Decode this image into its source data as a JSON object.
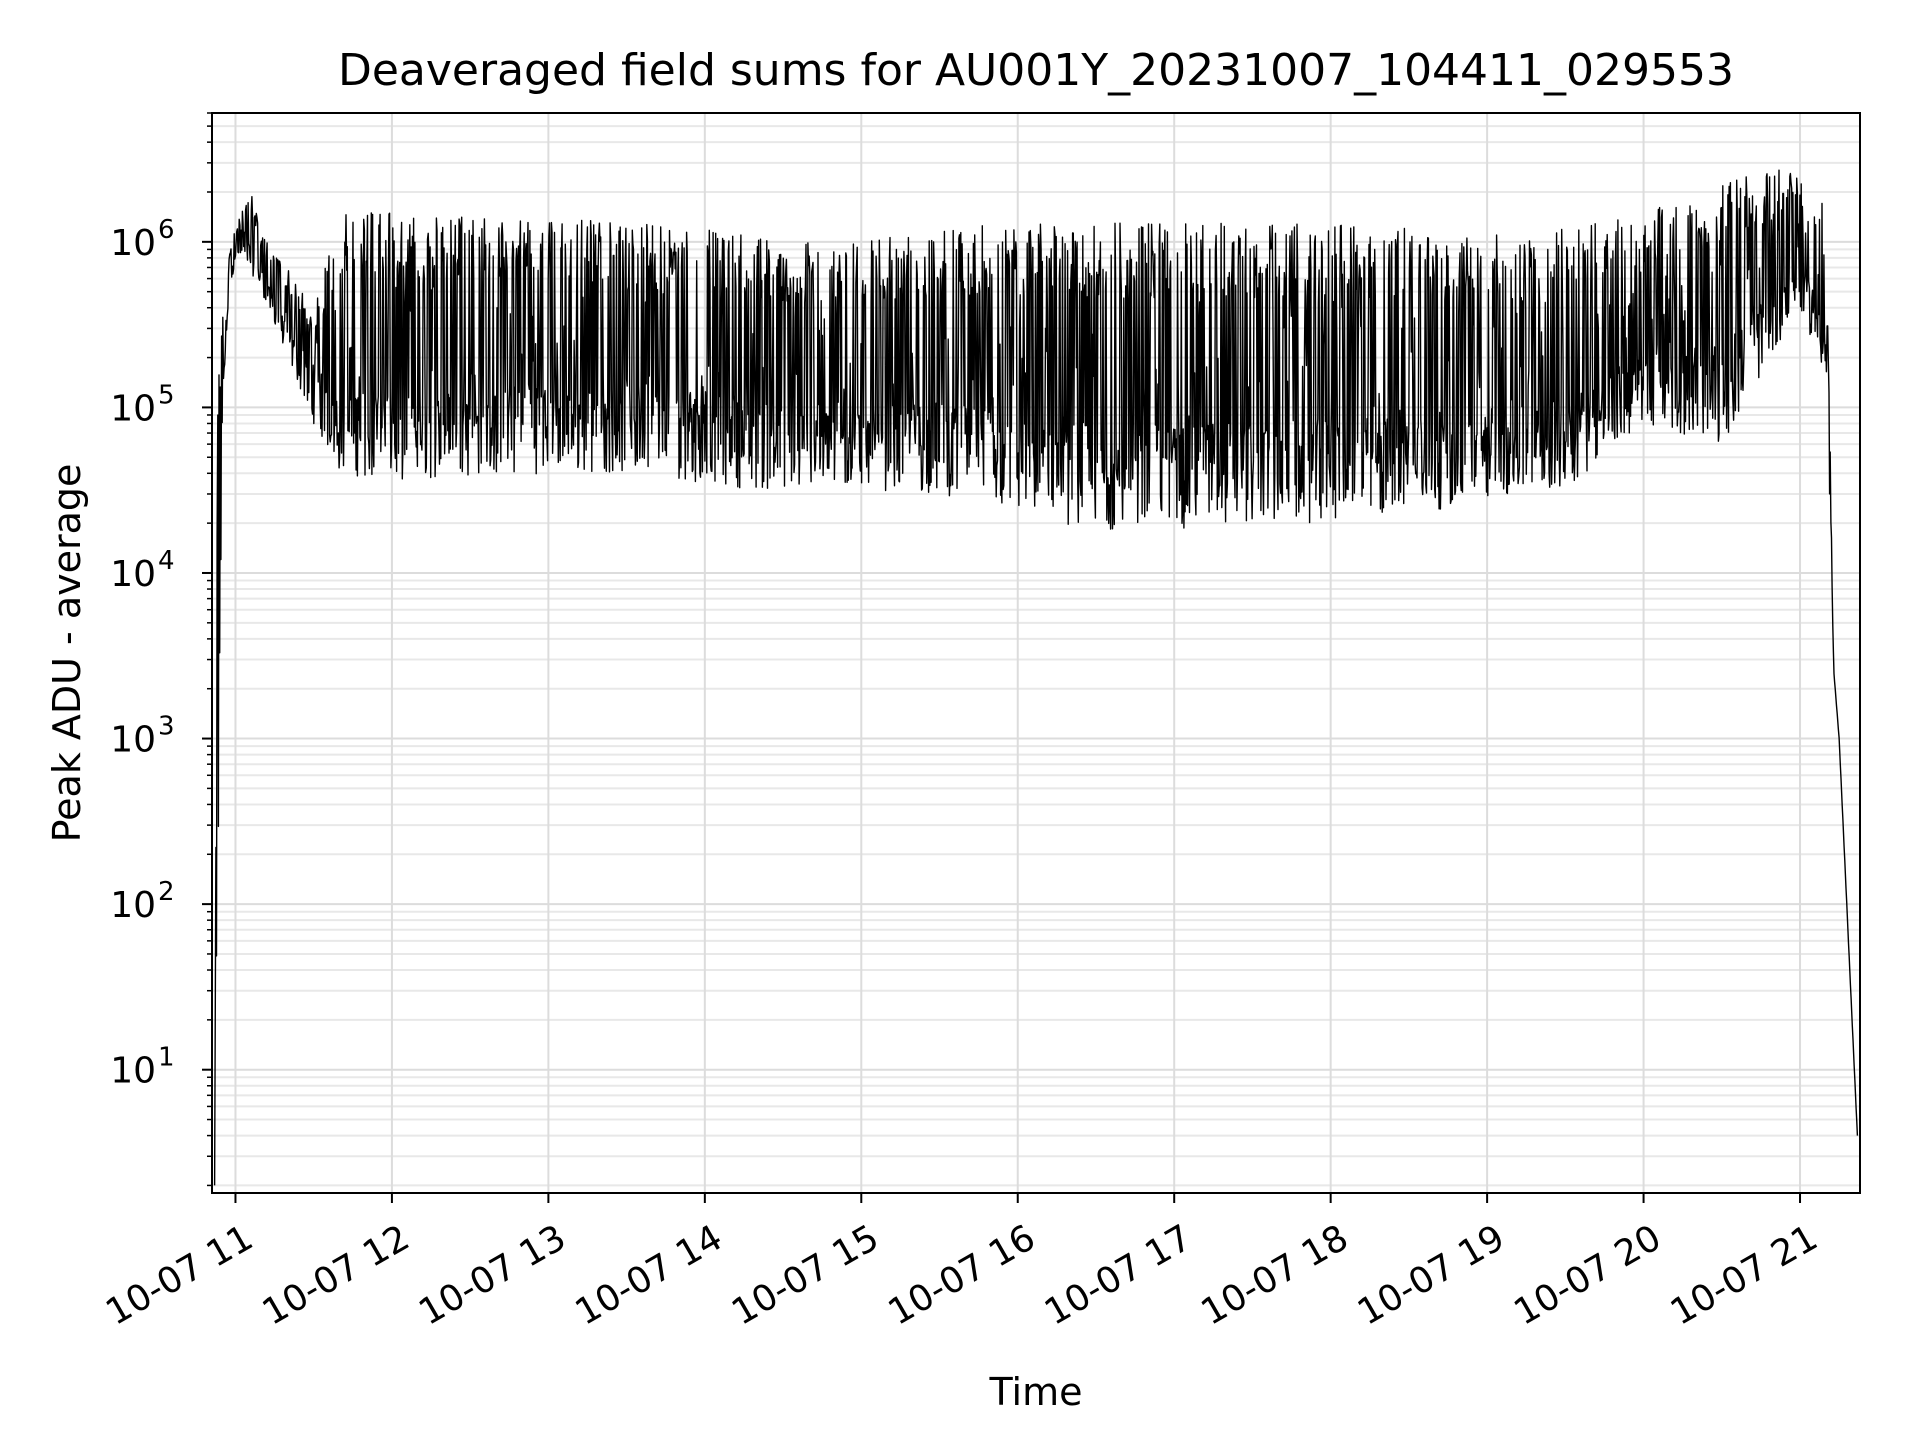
{
  "chart_data": {
    "type": "line",
    "title": "Deaveraged field sums for AU001Y_20231007_104411_029553",
    "xlabel": "Time",
    "ylabel": "Peak ADU - average",
    "yscale": "log",
    "ylim": [
      1.8,
      6000000
    ],
    "xlim": [
      "2023-10-07 10:51",
      "2023-10-07 21:23"
    ],
    "grid": true,
    "line_color": "#000000",
    "x_ticks": [
      "10-07 11",
      "10-07 12",
      "10-07 13",
      "10-07 14",
      "10-07 15",
      "10-07 16",
      "10-07 17",
      "10-07 18",
      "10-07 19",
      "10-07 20",
      "10-07 21"
    ],
    "y_ticks": [
      {
        "base": "10",
        "exp": "1"
      },
      {
        "base": "10",
        "exp": "2"
      },
      {
        "base": "10",
        "exp": "3"
      },
      {
        "base": "10",
        "exp": "4"
      },
      {
        "base": "10",
        "exp": "5"
      },
      {
        "base": "10",
        "exp": "6"
      }
    ],
    "series": [
      {
        "x": [
          "2023-10-07 10:52",
          "2023-10-07 10:53",
          "2023-10-07 10:55",
          "2023-10-07 10:58",
          "2023-10-07 11:00",
          "2023-10-07 11:05",
          "2023-10-07 11:10",
          "2023-10-07 11:20",
          "2023-10-07 11:30",
          "2023-10-07 11:40",
          "2023-10-07 12:00",
          "2023-10-07 12:30",
          "2023-10-07 13:00",
          "2023-10-07 13:30",
          "2023-10-07 14:00",
          "2023-10-07 14:30",
          "2023-10-07 15:00",
          "2023-10-07 15:30",
          "2023-10-07 16:00",
          "2023-10-07 16:30",
          "2023-10-07 17:00",
          "2023-10-07 17:30",
          "2023-10-07 18:00",
          "2023-10-07 18:30",
          "2023-10-07 19:00",
          "2023-10-07 19:30",
          "2023-10-07 20:00",
          "2023-10-07 20:30",
          "2023-10-07 21:00",
          "2023-10-07 21:10",
          "2023-10-07 21:13",
          "2023-10-07 21:15",
          "2023-10-07 21:22"
        ],
        "y_low": [
          2,
          7,
          100000,
          500000,
          800000,
          700000,
          500000,
          200000,
          80000,
          40000,
          35000,
          38000,
          40000,
          40000,
          35000,
          30000,
          32000,
          30000,
          22000,
          18000,
          18000,
          20000,
          20000,
          22000,
          28000,
          32000,
          80000,
          60000,
          400000,
          150000,
          2500,
          1000,
          4
        ],
        "y_high": [
          2,
          180000,
          400000,
          900000,
          1200000,
          2200000,
          1200000,
          700000,
          400000,
          1500000,
          1500000,
          1400000,
          1400000,
          1300000,
          1200000,
          1000000,
          1000000,
          1200000,
          1300000,
          1300000,
          1300000,
          1300000,
          1300000,
          1200000,
          1100000,
          1200000,
          1500000,
          2500000,
          2800000,
          1800000,
          2500,
          1000,
          4
        ]
      }
    ]
  }
}
